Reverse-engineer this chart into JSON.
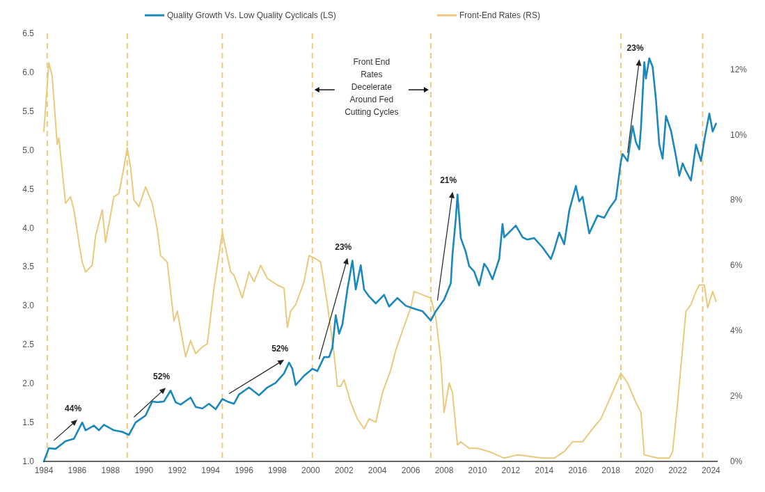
{
  "chart_data": {
    "type": "line",
    "xlim": [
      1984,
      2024.4
    ],
    "xticks": [
      1984,
      1986,
      1988,
      1990,
      1992,
      1994,
      1996,
      1998,
      2000,
      2002,
      2004,
      2006,
      2008,
      2010,
      2012,
      2014,
      2016,
      2018,
      2020,
      2022,
      2024
    ],
    "ylim": [
      1,
      6.5
    ],
    "yticks": [
      {
        "value": 1,
        "label": "1.0"
      },
      {
        "value": 1.5,
        "label": "1.5"
      },
      {
        "value": 2,
        "label": "2.0"
      },
      {
        "value": 2.5,
        "label": "2.5"
      },
      {
        "value": 3,
        "label": "3.0"
      },
      {
        "value": 3.5,
        "label": "3.5"
      },
      {
        "value": 4,
        "label": "4.0"
      },
      {
        "value": 4.5,
        "label": "4.5"
      },
      {
        "value": 5,
        "label": "5.0"
      },
      {
        "value": 5.5,
        "label": "5.5"
      },
      {
        "value": 6,
        "label": "6.0"
      },
      {
        "value": 6.5,
        "label": "6.5"
      }
    ],
    "y2lim": [
      0,
      13.1
    ],
    "y2ticks": [
      {
        "value": 0,
        "label": "0%"
      },
      {
        "value": 2,
        "label": "2%"
      },
      {
        "value": 4,
        "label": "4%"
      },
      {
        "value": 6,
        "label": "6%"
      },
      {
        "value": 8,
        "label": "8%"
      },
      {
        "value": 10,
        "label": "10%"
      },
      {
        "value": 12,
        "label": "12%"
      }
    ],
    "legend": "top",
    "grid": false,
    "series": [
      {
        "name": "Quality Growth Vs. Low Quality Cyclicals (LS)",
        "color": "#1b88bb",
        "x": [
          1984.0,
          1984.3,
          1984.7,
          1985.3,
          1985.8,
          1986.3,
          1986.5,
          1987.0,
          1987.3,
          1987.6,
          1988.2,
          1988.7,
          1989.1,
          1989.5,
          1990.1,
          1990.5,
          1990.8,
          1991.2,
          1991.6,
          1991.9,
          1992.2,
          1992.8,
          1993.1,
          1993.5,
          1993.9,
          1994.3,
          1994.7,
          1995.0,
          1995.4,
          1995.7,
          1996.3,
          1996.9,
          1997.4,
          1997.9,
          1998.4,
          1998.7,
          1998.9,
          1999.1,
          1999.6,
          2000.1,
          2000.4,
          2000.8,
          2001.1,
          2001.3,
          2001.5,
          2001.7,
          2001.9,
          2002.2,
          2002.5,
          2002.7,
          2003.0,
          2003.2,
          2003.5,
          2003.9,
          2004.4,
          2004.7,
          2005.2,
          2005.7,
          2006.1,
          2006.7,
          2007.2,
          2007.5,
          2008.0,
          2008.4,
          2008.5,
          2008.7,
          2008.8,
          2009.0,
          2009.3,
          2009.5,
          2009.8,
          2010.1,
          2010.4,
          2010.6,
          2010.9,
          2011.3,
          2011.5,
          2011.6,
          2012.3,
          2012.7,
          2013.0,
          2013.4,
          2013.9,
          2014.4,
          2014.6,
          2014.9,
          2015.2,
          2015.5,
          2015.9,
          2016.1,
          2016.3,
          2016.7,
          2017.2,
          2017.6,
          2017.9,
          2018.3,
          2018.6,
          2018.7,
          2019.0,
          2019.3,
          2019.5,
          2019.7,
          2019.8,
          2020.0,
          2020.1,
          2020.3,
          2020.5,
          2020.7,
          2020.9,
          2021.1,
          2021.3,
          2021.6,
          2021.9,
          2022.1,
          2022.3,
          2022.5,
          2022.8,
          2023.1,
          2023.4,
          2023.6,
          2023.9,
          2024.1,
          2024.3
        ],
        "values": [
          1.0,
          1.17,
          1.16,
          1.26,
          1.29,
          1.5,
          1.4,
          1.46,
          1.4,
          1.47,
          1.4,
          1.38,
          1.34,
          1.5,
          1.59,
          1.77,
          1.76,
          1.77,
          1.91,
          1.76,
          1.73,
          1.82,
          1.7,
          1.68,
          1.74,
          1.67,
          1.8,
          1.77,
          1.74,
          1.86,
          1.95,
          1.85,
          1.95,
          2.01,
          2.13,
          2.27,
          2.19,
          1.98,
          2.1,
          2.19,
          2.16,
          2.34,
          2.34,
          2.46,
          2.88,
          2.64,
          2.76,
          3.21,
          3.58,
          3.21,
          3.52,
          3.21,
          3.12,
          3.03,
          3.14,
          2.99,
          3.1,
          3.0,
          2.97,
          2.93,
          2.81,
          2.93,
          3.08,
          3.29,
          3.66,
          4.12,
          4.43,
          3.87,
          3.69,
          3.51,
          3.44,
          3.26,
          3.54,
          3.48,
          3.34,
          3.6,
          4.05,
          3.88,
          4.03,
          3.88,
          3.85,
          3.87,
          3.75,
          3.6,
          3.72,
          3.94,
          3.79,
          4.22,
          4.54,
          4.34,
          4.4,
          3.93,
          4.16,
          4.13,
          4.25,
          4.37,
          4.86,
          4.95,
          4.86,
          5.31,
          5.1,
          5.01,
          5.28,
          6.13,
          5.92,
          6.18,
          6.07,
          5.65,
          5.07,
          4.89,
          5.44,
          5.25,
          4.92,
          4.67,
          4.83,
          4.73,
          4.61,
          5.07,
          4.86,
          5.13,
          5.47,
          5.24,
          5.34
        ]
      },
      {
        "name": "Front-End Rates (RS)",
        "color": "#e9c97c",
        "axis": "y2",
        "x": [
          1984.0,
          1984.1,
          1984.3,
          1984.5,
          1984.8,
          1984.9,
          1985.1,
          1985.3,
          1985.6,
          1985.8,
          1986.1,
          1986.3,
          1986.5,
          1986.9,
          1987.1,
          1987.5,
          1987.7,
          1988.2,
          1988.5,
          1988.8,
          1989.0,
          1989.2,
          1989.4,
          1989.7,
          1990.1,
          1990.5,
          1990.8,
          1991.0,
          1991.4,
          1991.8,
          1992.0,
          1992.5,
          1992.8,
          1993.1,
          1993.5,
          1993.8,
          1994.2,
          1994.7,
          1995.2,
          1995.4,
          1995.9,
          1996.3,
          1996.6,
          1997.0,
          1997.4,
          1998.0,
          1998.4,
          1998.6,
          1998.8,
          1999.1,
          1999.6,
          1999.9,
          2000.3,
          2000.6,
          2001.0,
          2001.4,
          2001.6,
          2001.8,
          2002.0,
          2002.4,
          2002.8,
          2003.2,
          2003.5,
          2003.9,
          2004.3,
          2004.8,
          2005.1,
          2005.5,
          2006.0,
          2006.2,
          2006.7,
          2007.2,
          2007.5,
          2007.8,
          2008.0,
          2008.3,
          2008.5,
          2008.8,
          2009.0,
          2009.5,
          2010.0,
          2010.7,
          2011.6,
          2012.4,
          2013.9,
          2014.6,
          2015.2,
          2015.7,
          2016.3,
          2016.9,
          2017.4,
          2018.0,
          2018.6,
          2019.0,
          2019.5,
          2019.8,
          2020.0,
          2020.8,
          2021.5,
          2021.7,
          2022.0,
          2022.5,
          2022.8,
          2023.1,
          2023.3,
          2023.6,
          2023.8,
          2024.1,
          2024.3
        ],
        "values": [
          10.1,
          10.8,
          12.2,
          11.8,
          9.7,
          9.9,
          8.9,
          7.9,
          8.1,
          7.7,
          6.7,
          6.1,
          5.8,
          6.0,
          6.9,
          7.7,
          6.7,
          8.1,
          8.2,
          9.0,
          9.6,
          9.0,
          8.0,
          7.8,
          8.4,
          7.9,
          7.1,
          6.3,
          6.1,
          4.3,
          4.6,
          3.2,
          3.7,
          3.3,
          3.5,
          3.6,
          5.3,
          7.0,
          5.8,
          5.7,
          5.0,
          5.8,
          5.5,
          6.0,
          5.6,
          5.4,
          5.3,
          4.1,
          4.6,
          4.8,
          5.5,
          6.3,
          6.2,
          6.1,
          4.8,
          3.3,
          2.3,
          2.3,
          2.5,
          1.8,
          1.3,
          1.0,
          1.3,
          1.2,
          2.1,
          2.8,
          3.4,
          4.0,
          4.7,
          5.2,
          5.1,
          5.0,
          4.4,
          3.1,
          1.5,
          2.4,
          2.1,
          0.5,
          0.6,
          0.4,
          0.4,
          0.3,
          0.1,
          0.2,
          0.1,
          0.1,
          0.3,
          0.6,
          0.6,
          1.0,
          1.3,
          2.0,
          2.7,
          2.4,
          1.8,
          1.5,
          0.2,
          0.1,
          0.1,
          0.3,
          1.8,
          4.6,
          4.8,
          5.2,
          5.4,
          5.4,
          4.7,
          5.2,
          4.9
        ]
      }
    ],
    "ref_lines": [
      {
        "axis": "x",
        "value": 1984.2,
        "color": "#efc97a",
        "line_style": "dashed"
      },
      {
        "axis": "x",
        "value": 1989.0,
        "color": "#efc97a",
        "line_style": "dashed"
      },
      {
        "axis": "x",
        "value": 1994.7,
        "color": "#efc97a",
        "line_style": "dashed"
      },
      {
        "axis": "x",
        "value": 2000.1,
        "color": "#efc97a",
        "line_style": "dashed"
      },
      {
        "axis": "x",
        "value": 2007.2,
        "color": "#efc97a",
        "line_style": "dashed"
      },
      {
        "axis": "x",
        "value": 2018.6,
        "color": "#efc97a",
        "line_style": "dashed"
      },
      {
        "axis": "x",
        "value": 2023.5,
        "color": "#efc97a",
        "line_style": "dashed"
      }
    ],
    "annotations": [
      {
        "text": "44%",
        "x": 1986.3,
        "y": 1.5
      },
      {
        "text": "52%",
        "x": 1991.6,
        "y": 1.91
      },
      {
        "text": "52%",
        "x": 1998.7,
        "y": 2.27
      },
      {
        "text": "23%",
        "x": 2002.5,
        "y": 3.58
      },
      {
        "text": "21%",
        "x": 2008.8,
        "y": 4.43
      },
      {
        "text": "23%",
        "x": 2020.0,
        "y": 6.13
      },
      "Front End\nRates\nDecelerate\nAround Fed\nCutting Cycles"
    ]
  }
}
